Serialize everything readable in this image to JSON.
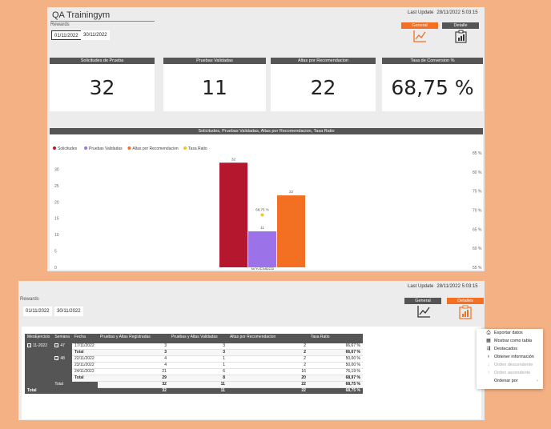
{
  "top": {
    "title": "QA Trainingym",
    "rewards_label": "Rewards",
    "date_from": "01/11/2022",
    "date_to": "30/11/2022",
    "last_update_label": "Last Update",
    "last_update_value": "28/11/2022 5:03:15",
    "tabs": [
      {
        "label": "General",
        "active": true,
        "icon": "line-chart-icon"
      },
      {
        "label": "Detalle",
        "active": false,
        "icon": "clipboard-chart-icon"
      }
    ],
    "kpis": [
      {
        "label": "Solicitudes de Prueba",
        "value": "32"
      },
      {
        "label": "Pruebas Validadas",
        "value": "11"
      },
      {
        "label": "Altas por Recomendacion",
        "value": "22"
      },
      {
        "label": "Tasa de Conversion %",
        "value": "68,75 %"
      }
    ],
    "chart_header": "Solicitudes, Pruebas Validadas, Altas por Recomendacion, Tasa Ratio"
  },
  "chart_data": {
    "type": "bar",
    "categories": [
      "NOVEMBER"
    ],
    "series": [
      {
        "name": "Solicitudes",
        "values": [
          32
        ],
        "color": "#b5182e",
        "label": "32"
      },
      {
        "name": "Pruebas Validadas",
        "values": [
          11
        ],
        "color": "#9b72e8",
        "label": "11"
      },
      {
        "name": "Altas por Recomendacion",
        "values": [
          22
        ],
        "color": "#f36f21",
        "label": "22"
      },
      {
        "name": "Tasa Ratio",
        "values": [
          68.75
        ],
        "color": "#f5c518",
        "label": "68,75 %",
        "axis": "right",
        "kind": "point"
      }
    ],
    "y_left": {
      "ticks": [
        "0",
        "5",
        "10",
        "15",
        "20",
        "25",
        "30"
      ],
      "min": 0,
      "max": 35
    },
    "y_right": {
      "ticks": [
        "55 %",
        "60 %",
        "65 %",
        "70 %",
        "75 %",
        "80 %",
        "85 %"
      ],
      "min": 55,
      "max": 85
    },
    "legend_position": "top-left",
    "grid": false
  },
  "bottom": {
    "rewards_label": "Rewards",
    "date_from": "01/11/2022",
    "date_to": "30/11/2022",
    "last_update_label": "Last Update",
    "last_update_value": "28/11/2022 5:03:15",
    "tabs": [
      {
        "label": "General",
        "active": false,
        "icon": "line-chart-icon"
      },
      {
        "label": "Detalles",
        "active": true,
        "icon": "clipboard-chart-icon"
      }
    ],
    "table": {
      "headers": [
        "MesEjercicio",
        "Semana",
        "Fecha",
        "Pruebas y Altas Registradas",
        "Pruebas y Altas Validadas",
        "Altas por Recomendacion",
        "Tasa Ratio"
      ],
      "mes": "11-2022",
      "weeks": [
        {
          "semana": "47",
          "rows": [
            {
              "fecha": "17/11/2022",
              "reg": "3",
              "val": "3",
              "altas": "2",
              "tasa": "66,67 %"
            }
          ],
          "total": {
            "label": "Total",
            "reg": "3",
            "val": "3",
            "altas": "2",
            "tasa": "66,67 %"
          }
        },
        {
          "semana": "48",
          "rows": [
            {
              "fecha": "22/11/2022",
              "reg": "4",
              "val": "1",
              "altas": "2",
              "tasa": "50,00 %"
            },
            {
              "fecha": "23/11/2022",
              "reg": "4",
              "val": "1",
              "altas": "2",
              "tasa": "50,00 %"
            },
            {
              "fecha": "24/11/2022",
              "reg": "21",
              "val": "6",
              "altas": "16",
              "tasa": "76,19 %"
            }
          ],
          "total": {
            "label": "Total",
            "reg": "29",
            "val": "8",
            "altas": "20",
            "tasa": "68,97 %"
          }
        }
      ],
      "mes_total": {
        "label": "Total",
        "reg": "32",
        "val": "11",
        "altas": "22",
        "tasa": "68,75 %"
      },
      "grand_total": {
        "label": "Total",
        "reg": "32",
        "val": "11",
        "altas": "22",
        "tasa": "68,75 %"
      }
    }
  },
  "context_menu": {
    "items": [
      {
        "label": "Exportar datos",
        "icon": "export-icon",
        "disabled": false
      },
      {
        "label": "Mostrar como tabla",
        "icon": "table-icon",
        "disabled": false
      },
      {
        "label": "Destacados",
        "icon": "spotlight-icon",
        "disabled": false
      },
      {
        "label": "Obtener información",
        "icon": "lightbulb-icon",
        "disabled": false
      },
      {
        "label": "Orden descendente",
        "icon": "sort-desc-icon",
        "disabled": true
      },
      {
        "label": "Orden ascendente",
        "icon": "sort-asc-icon",
        "disabled": true
      },
      {
        "label": "Ordenar por",
        "icon": "",
        "disabled": false,
        "submenu": true
      }
    ]
  }
}
